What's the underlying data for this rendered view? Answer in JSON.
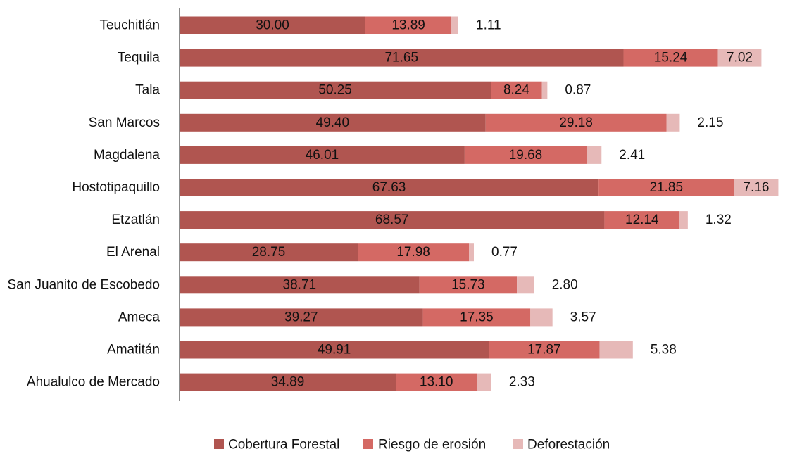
{
  "chart_data": {
    "type": "bar",
    "orientation": "horizontal",
    "stacked": true,
    "title": "",
    "xlabel": "",
    "ylabel": "",
    "categories": [
      "Teuchitlán",
      "Tequila",
      "Tala",
      "San Marcos",
      "Magdalena",
      "Hostotipaquillo",
      "Etzatlán",
      "El Arenal",
      "San Juanito de Escobedo",
      "Ameca",
      "Amatitán",
      "Ahualulco de Mercado"
    ],
    "series": [
      {
        "name": "Cobertura Forestal",
        "color": "#b05550",
        "values": [
          30.0,
          71.65,
          50.25,
          49.4,
          46.01,
          67.63,
          68.57,
          28.75,
          38.71,
          39.27,
          49.91,
          34.89
        ],
        "labels": [
          "30.00",
          "71.65",
          "50.25",
          "49.40",
          "46.01",
          "67.63",
          "68.57",
          "28.75",
          "38.71",
          "39.27",
          "49.91",
          "34.89"
        ]
      },
      {
        "name": "Riesgo de erosión",
        "color": "#d46964",
        "values": [
          13.89,
          15.24,
          8.24,
          29.18,
          19.68,
          21.85,
          12.14,
          17.98,
          15.73,
          17.35,
          17.87,
          13.1
        ],
        "labels": [
          "13.89",
          "15.24",
          "8.24",
          "29.18",
          "19.68",
          "21.85",
          "12.14",
          "17.98",
          "15.73",
          "17.35",
          "17.87",
          "13.10"
        ]
      },
      {
        "name": "Deforestación",
        "color": "#e6b9b8",
        "values": [
          1.11,
          7.02,
          0.87,
          2.15,
          2.41,
          7.16,
          1.32,
          0.77,
          2.8,
          3.57,
          5.38,
          2.33
        ],
        "labels": [
          "1.11",
          "7.02",
          "0.87",
          "2.15",
          "2.41",
          "7.16",
          "1.32",
          "0.77",
          "2.80",
          "3.57",
          "5.38",
          "2.33"
        ]
      }
    ],
    "xlim": [
      0,
      100
    ],
    "grid": false,
    "legend_position": "bottom"
  }
}
